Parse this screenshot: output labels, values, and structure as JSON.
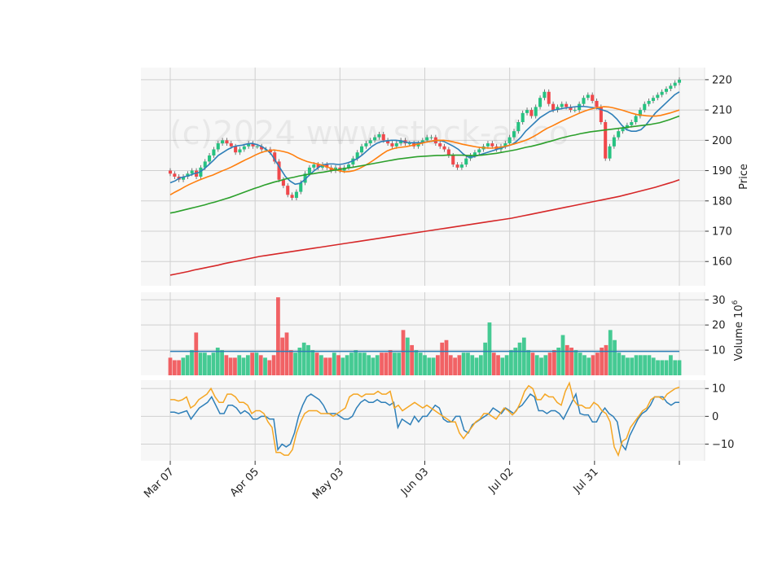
{
  "watermark": "(c)2024 www.stock-ai.co",
  "chart_data": [
    {
      "type": "candlestick",
      "panel": "price",
      "ylabel": "Price",
      "ylim": [
        152,
        224
      ],
      "yticks": [
        160,
        170,
        180,
        190,
        200,
        210,
        220
      ],
      "grid": true,
      "x_range": [
        0,
        120
      ],
      "xtick_labels": [
        {
          "i": 0,
          "label": "Mar 07"
        },
        {
          "i": 20,
          "label": "Apr 05"
        },
        {
          "i": 40,
          "label": "May 03"
        },
        {
          "i": 60,
          "label": "Jun 03"
        },
        {
          "i": 80,
          "label": "Jul 02"
        },
        {
          "i": 100,
          "label": "Jul 31"
        },
        {
          "i": 120,
          "label": ""
        }
      ],
      "close": [
        189,
        188,
        187,
        188,
        189,
        190,
        188,
        191,
        193,
        195,
        197,
        199,
        200,
        199,
        198,
        196,
        197,
        198,
        199,
        198,
        198,
        197,
        197,
        196,
        193,
        187,
        185,
        182,
        181,
        183,
        186,
        189,
        191,
        192,
        191,
        192,
        191,
        190,
        191,
        190,
        191,
        192,
        194,
        196,
        198,
        199,
        200,
        201,
        202,
        200,
        199,
        198,
        199,
        200,
        199,
        199,
        198,
        199,
        200,
        201,
        201,
        199,
        198,
        197,
        195,
        192,
        191,
        192,
        194,
        195,
        196,
        197,
        198,
        199,
        198,
        197,
        198,
        199,
        201,
        203,
        206,
        209,
        210,
        208,
        211,
        214,
        216,
        212,
        210,
        211,
        212,
        211,
        210,
        210,
        212,
        214,
        215,
        213,
        211,
        206,
        194,
        198,
        201,
        203,
        204,
        205,
        206,
        208,
        210,
        212,
        213,
        214,
        215,
        216,
        217,
        218,
        219,
        220
      ],
      "series": [
        {
          "name": "MA10",
          "color": "#2e7fb8",
          "values": [
            186.0,
            186.6,
            187.6,
            188.0,
            188.4,
            189.0,
            189.4,
            190.5,
            191.9,
            193.4,
            195.0,
            196.0,
            197.0,
            197.8,
            198.2,
            198.4,
            198.8,
            199.0,
            198.6,
            198.0,
            197.0,
            195.5,
            193.0,
            190.5,
            188.0,
            186.5,
            185.5,
            185.8,
            187.0,
            188.6,
            190.0,
            191.2,
            192.0,
            192.2,
            192.2,
            192.0,
            192.2,
            192.6,
            193.2,
            194.0,
            195.2,
            196.6,
            198.0,
            199.0,
            199.6,
            199.8,
            200.0,
            200.0,
            199.8,
            199.4,
            199.2,
            199.2,
            199.2,
            199.4,
            199.6,
            199.8,
            200.0,
            199.6,
            198.8,
            198.0,
            197.0,
            195.5,
            194.5,
            194.5,
            195.0,
            195.5,
            196.0,
            196.5,
            197.0,
            197.5,
            198.0,
            198.5,
            199.5,
            201.0,
            203.0,
            204.5,
            206.0,
            207.5,
            208.5,
            209.5,
            210.0,
            210.3,
            210.6,
            210.8,
            211.0,
            211.2,
            211.2,
            211.0,
            210.8,
            210.5,
            210.0,
            209.5,
            208.5,
            207.0,
            205.0,
            203.5,
            203.0,
            203.0,
            203.5,
            205.0,
            207.0,
            209.0,
            210.5,
            212.0,
            213.5,
            215.0,
            216.0
          ]
        },
        {
          "name": "MA20",
          "color": "#ff7f0e",
          "values": [
            182.0,
            182.9,
            183.7,
            184.6,
            185.4,
            186.1,
            186.8,
            187.4,
            188.0,
            188.5,
            189.2,
            189.9,
            190.5,
            191.2,
            192.0,
            192.8,
            193.6,
            194.3,
            195.1,
            195.8,
            196.3,
            196.6,
            196.8,
            196.6,
            196.3,
            195.9,
            195.2,
            194.3,
            193.6,
            193.0,
            192.6,
            192.3,
            191.9,
            191.4,
            190.8,
            190.3,
            189.9,
            189.6,
            189.7,
            190.0,
            190.6,
            191.4,
            192.3,
            193.3,
            194.4,
            195.5,
            196.5,
            197.1,
            197.5,
            197.7,
            197.9,
            198.2,
            198.6,
            198.9,
            199.3,
            199.6,
            199.9,
            200.0,
            200.0,
            199.8,
            199.5,
            199.1,
            198.7,
            198.4,
            198.1,
            197.8,
            197.6,
            197.5,
            197.4,
            197.5,
            197.7,
            198.0,
            198.4,
            198.8,
            199.3,
            199.8,
            200.4,
            201.2,
            202.1,
            203.1,
            204.0,
            204.7,
            205.5,
            206.3,
            207.0,
            207.7,
            208.4,
            209.1,
            209.7,
            210.2,
            210.6,
            210.9,
            211.1,
            211.0,
            210.7,
            210.3,
            209.9,
            209.4,
            208.9,
            208.5,
            208.3,
            208.1,
            208.0,
            208.0,
            208.2,
            208.6,
            209.0,
            209.5,
            210.0
          ]
        },
        {
          "name": "MA50",
          "color": "#2ca02c",
          "values": [
            176.0,
            176.3,
            176.7,
            177.1,
            177.5,
            177.9,
            178.3,
            178.7,
            179.2,
            179.6,
            180.1,
            180.6,
            181.1,
            181.7,
            182.3,
            182.9,
            183.5,
            184.1,
            184.6,
            185.2,
            185.7,
            186.2,
            186.6,
            187.1,
            187.5,
            187.8,
            188.2,
            188.5,
            188.8,
            189.0,
            189.3,
            189.5,
            189.8,
            190.1,
            190.3,
            190.6,
            190.9,
            191.1,
            191.4,
            191.7,
            192.0,
            192.3,
            192.6,
            192.9,
            193.2,
            193.5,
            193.8,
            194.0,
            194.2,
            194.4,
            194.6,
            194.7,
            194.8,
            194.9,
            195.0,
            195.0,
            195.1,
            195.1,
            195.1,
            195.1,
            195.0,
            195.0,
            195.0,
            195.1,
            195.3,
            195.5,
            195.7,
            196.0,
            196.3,
            196.6,
            196.9,
            197.3,
            197.7,
            198.0,
            198.4,
            198.8,
            199.3,
            199.7,
            200.2,
            200.7,
            201.1,
            201.5,
            201.8,
            202.2,
            202.5,
            202.8,
            203.0,
            203.2,
            203.4,
            203.6,
            203.8,
            204.0,
            204.2,
            204.4,
            204.6,
            204.8,
            205.0,
            205.2,
            205.5,
            205.8,
            206.3,
            206.8,
            207.4,
            208.0
          ]
        },
        {
          "name": "MA200",
          "color": "#d62728",
          "values": [
            155.5,
            155.9,
            156.3,
            156.7,
            157.2,
            157.6,
            158.0,
            158.4,
            158.8,
            159.3,
            159.7,
            160.1,
            160.5,
            160.9,
            161.3,
            161.7,
            162.0,
            162.3,
            162.6,
            162.9,
            163.2,
            163.5,
            163.8,
            164.1,
            164.4,
            164.7,
            165.0,
            165.3,
            165.6,
            165.9,
            166.2,
            166.5,
            166.8,
            167.1,
            167.4,
            167.7,
            168.0,
            168.3,
            168.6,
            168.9,
            169.2,
            169.5,
            169.8,
            170.1,
            170.4,
            170.7,
            171.0,
            171.3,
            171.6,
            171.9,
            172.2,
            172.5,
            172.8,
            173.1,
            173.4,
            173.7,
            174.0,
            174.3,
            174.7,
            175.1,
            175.5,
            175.9,
            176.3,
            176.7,
            177.1,
            177.5,
            177.9,
            178.3,
            178.7,
            179.1,
            179.5,
            179.9,
            180.3,
            180.7,
            181.1,
            181.5,
            182.0,
            182.5,
            183.0,
            183.5,
            184.0,
            184.5,
            185.1,
            185.7,
            186.3,
            187.0
          ]
        }
      ],
      "up_color": "#26c281",
      "down_color": "#f0484b"
    },
    {
      "type": "bar",
      "panel": "volume",
      "ylabel": "Volume  10^6",
      "ylim": [
        0,
        33
      ],
      "yticks": [
        10,
        20,
        30
      ],
      "values": [
        7,
        6,
        6,
        7,
        8,
        10,
        17,
        9,
        9,
        8,
        9,
        11,
        10,
        8,
        7,
        7,
        8,
        7,
        8,
        9,
        9,
        8,
        7,
        6,
        8,
        31,
        15,
        17,
        10,
        9,
        11,
        13,
        12,
        10,
        9,
        8,
        7,
        7,
        9,
        8,
        7,
        8,
        9,
        10,
        9,
        9,
        8,
        7,
        8,
        9,
        9,
        10,
        9,
        9,
        18,
        15,
        12,
        10,
        9,
        8,
        7,
        7,
        8,
        13,
        14,
        8,
        7,
        8,
        9,
        9,
        8,
        7,
        8,
        13,
        21,
        9,
        8,
        7,
        8,
        10,
        11,
        13,
        15,
        10,
        9,
        8,
        7,
        8,
        9,
        10,
        11,
        16,
        12,
        11,
        10,
        9,
        8,
        7,
        8,
        9,
        11,
        12,
        18,
        14,
        9,
        8,
        7,
        7,
        8,
        8,
        8,
        8,
        7,
        6,
        6,
        6,
        8,
        6,
        6
      ],
      "ma_color": "#2e7fb8",
      "ma_value": 9.5
    },
    {
      "type": "line",
      "panel": "oscillator",
      "ylim": [
        -16,
        13
      ],
      "yticks": [
        -10,
        0,
        10
      ],
      "series": [
        {
          "name": "MACD",
          "color": "#2e7fb8",
          "values": [
            1.5,
            1.5,
            1,
            1.5,
            2,
            -1,
            1,
            3,
            4,
            5,
            7,
            4,
            1,
            1,
            4,
            4,
            3,
            1,
            2,
            1,
            -1,
            -1,
            0,
            0,
            -1,
            -1,
            -12,
            -10,
            -11,
            -10,
            -6,
            0,
            4,
            7,
            8,
            7,
            6,
            4,
            1,
            1,
            1,
            0,
            -1,
            -1,
            0,
            3,
            5,
            6,
            5,
            5,
            6,
            5,
            5,
            4,
            5,
            -4,
            -1,
            -2,
            -3,
            0,
            -2,
            0,
            0,
            2,
            4,
            3,
            -1,
            -2,
            -2,
            0,
            0,
            -5,
            -6,
            -3,
            -2,
            -1,
            0,
            1,
            3,
            2,
            1,
            3,
            2,
            1,
            3,
            4,
            6,
            8,
            7,
            2,
            2,
            1,
            2,
            2,
            1,
            -1,
            2,
            5,
            8,
            1,
            0.5,
            0.5,
            -2,
            -2,
            1,
            3,
            1,
            0,
            -2,
            -10,
            -12,
            -7,
            -4,
            -1,
            1,
            2,
            4,
            7,
            7,
            7,
            5,
            4,
            5,
            5
          ]
        },
        {
          "name": "Signal",
          "color": "#f5a623",
          "values": [
            6,
            6,
            5.5,
            6,
            7,
            3,
            4,
            6,
            7,
            8,
            10,
            7,
            5,
            5,
            8,
            8,
            7,
            5,
            5,
            4,
            1,
            2,
            2,
            1,
            -2,
            -4,
            -13,
            -13,
            -14,
            -14,
            -12,
            -6,
            -2,
            1,
            2,
            2,
            2,
            1,
            1,
            1,
            0,
            1,
            2,
            3,
            7,
            8,
            8,
            7,
            8,
            8,
            8,
            9,
            8,
            8,
            9,
            3,
            4,
            2,
            3,
            4,
            5,
            4,
            3,
            4,
            3,
            2,
            1,
            0,
            -1,
            -2,
            -2,
            -6,
            -8,
            -6,
            -4,
            -2,
            -1,
            1,
            1,
            0,
            -1,
            1,
            3,
            2,
            0.5,
            2,
            5,
            9,
            11,
            10,
            6,
            6,
            8,
            7,
            7,
            5,
            4,
            9,
            12,
            6,
            4,
            4,
            3,
            3,
            5,
            4,
            2,
            1,
            -2,
            -11,
            -14,
            -9,
            -8,
            -4,
            -2,
            0,
            2,
            3,
            6,
            7,
            7,
            6,
            8,
            9,
            10,
            10.5
          ]
        }
      ]
    }
  ]
}
